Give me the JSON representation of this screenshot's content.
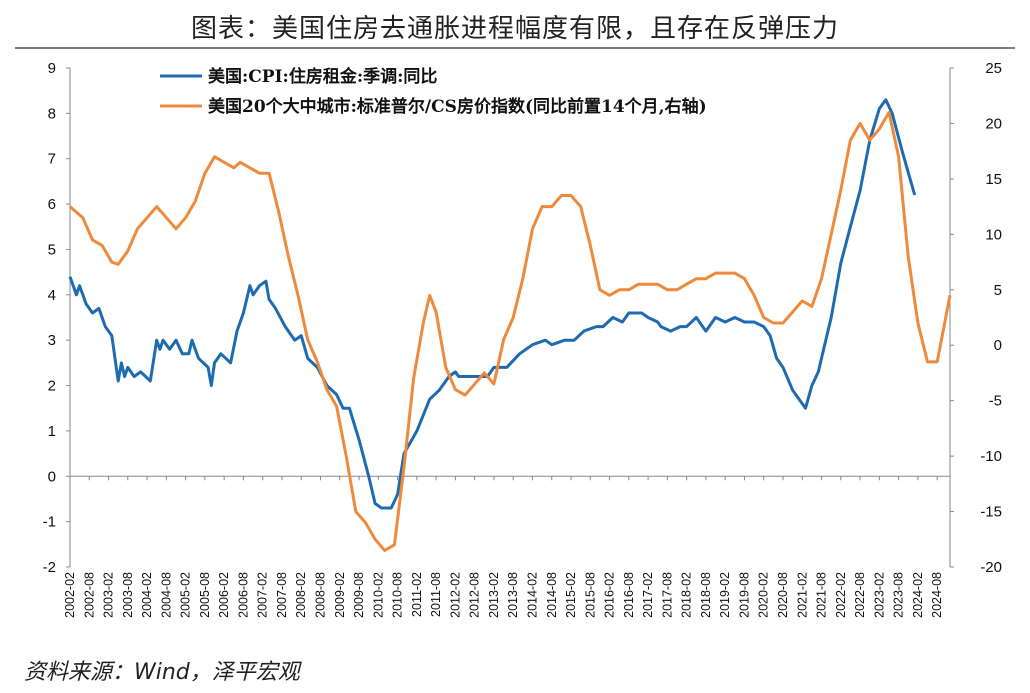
{
  "title": "图表：美国住房去通胀进程幅度有限，且存在反弹压力",
  "source": "资料来源：Wind，泽平宏观",
  "colors": {
    "cpi": "#1f6bb0",
    "cs": "#ed8a3c",
    "axis": "#888888"
  },
  "chart_data": {
    "type": "line",
    "legend_position": "top-left",
    "grid": false,
    "x_start": "2002-02",
    "x_end": "2024-12",
    "x_tick_labels": [
      "2002-02",
      "2002-08",
      "2003-02",
      "2003-08",
      "2004-02",
      "2004-08",
      "2005-02",
      "2005-08",
      "2006-02",
      "2006-08",
      "2007-02",
      "2007-08",
      "2008-02",
      "2008-08",
      "2009-02",
      "2009-08",
      "2010-02",
      "2010-08",
      "2011-02",
      "2011-08",
      "2012-02",
      "2012-08",
      "2013-02",
      "2013-08",
      "2014-02",
      "2014-08",
      "2015-02",
      "2015-08",
      "2016-02",
      "2016-08",
      "2017-02",
      "2017-08",
      "2018-02",
      "2018-08",
      "2019-02",
      "2019-08",
      "2020-02",
      "2020-08",
      "2021-02",
      "2021-08",
      "2022-02",
      "2022-08",
      "2023-02",
      "2023-08",
      "2024-02",
      "2024-08"
    ],
    "y_left": {
      "min": -2,
      "max": 9,
      "ticks": [
        -2,
        -1,
        0,
        1,
        2,
        3,
        4,
        5,
        6,
        7,
        8,
        9
      ]
    },
    "y_right": {
      "min": -20,
      "max": 25,
      "ticks": [
        -20,
        -15,
        -10,
        -5,
        0,
        5,
        10,
        15,
        20,
        25
      ]
    },
    "series": [
      {
        "name": "美国:CPI:住房租金:季调:同比",
        "axis": "left",
        "color": "#1f6bb0",
        "points": [
          [
            "2002-02",
            4.4
          ],
          [
            "2002-04",
            4.0
          ],
          [
            "2002-05",
            4.2
          ],
          [
            "2002-07",
            3.8
          ],
          [
            "2002-09",
            3.6
          ],
          [
            "2002-11",
            3.7
          ],
          [
            "2003-01",
            3.3
          ],
          [
            "2003-03",
            3.1
          ],
          [
            "2003-04",
            2.6
          ],
          [
            "2003-05",
            2.1
          ],
          [
            "2003-06",
            2.5
          ],
          [
            "2003-07",
            2.2
          ],
          [
            "2003-08",
            2.4
          ],
          [
            "2003-10",
            2.2
          ],
          [
            "2003-12",
            2.3
          ],
          [
            "2004-03",
            2.1
          ],
          [
            "2004-05",
            3.0
          ],
          [
            "2004-06",
            2.8
          ],
          [
            "2004-07",
            3.0
          ],
          [
            "2004-09",
            2.8
          ],
          [
            "2004-11",
            3.0
          ],
          [
            "2005-01",
            2.7
          ],
          [
            "2005-03",
            2.7
          ],
          [
            "2005-04",
            3.0
          ],
          [
            "2005-06",
            2.6
          ],
          [
            "2005-09",
            2.4
          ],
          [
            "2005-10",
            2.0
          ],
          [
            "2005-11",
            2.5
          ],
          [
            "2006-01",
            2.7
          ],
          [
            "2006-04",
            2.5
          ],
          [
            "2006-06",
            3.2
          ],
          [
            "2006-08",
            3.6
          ],
          [
            "2006-10",
            4.2
          ],
          [
            "2006-11",
            4.0
          ],
          [
            "2007-01",
            4.2
          ],
          [
            "2007-03",
            4.3
          ],
          [
            "2007-04",
            3.9
          ],
          [
            "2007-06",
            3.7
          ],
          [
            "2007-09",
            3.3
          ],
          [
            "2007-12",
            3.0
          ],
          [
            "2008-02",
            3.1
          ],
          [
            "2008-04",
            2.6
          ],
          [
            "2008-07",
            2.4
          ],
          [
            "2008-10",
            2.0
          ],
          [
            "2009-01",
            1.8
          ],
          [
            "2009-03",
            1.5
          ],
          [
            "2009-05",
            1.5
          ],
          [
            "2009-08",
            0.8
          ],
          [
            "2009-11",
            0.0
          ],
          [
            "2010-01",
            -0.6
          ],
          [
            "2010-03",
            -0.7
          ],
          [
            "2010-06",
            -0.7
          ],
          [
            "2010-08",
            -0.4
          ],
          [
            "2010-10",
            0.5
          ],
          [
            "2011-02",
            1.0
          ],
          [
            "2011-06",
            1.7
          ],
          [
            "2011-09",
            1.9
          ],
          [
            "2011-12",
            2.2
          ],
          [
            "2012-02",
            2.3
          ],
          [
            "2012-03",
            2.2
          ],
          [
            "2012-08",
            2.2
          ],
          [
            "2012-12",
            2.2
          ],
          [
            "2013-02",
            2.4
          ],
          [
            "2013-06",
            2.4
          ],
          [
            "2013-10",
            2.7
          ],
          [
            "2014-02",
            2.9
          ],
          [
            "2014-06",
            3.0
          ],
          [
            "2014-08",
            2.9
          ],
          [
            "2014-12",
            3.0
          ],
          [
            "2015-03",
            3.0
          ],
          [
            "2015-06",
            3.2
          ],
          [
            "2015-10",
            3.3
          ],
          [
            "2015-12",
            3.3
          ],
          [
            "2016-03",
            3.5
          ],
          [
            "2016-06",
            3.4
          ],
          [
            "2016-08",
            3.6
          ],
          [
            "2016-10",
            3.6
          ],
          [
            "2016-12",
            3.6
          ],
          [
            "2017-02",
            3.5
          ],
          [
            "2017-05",
            3.4
          ],
          [
            "2017-06",
            3.3
          ],
          [
            "2017-09",
            3.2
          ],
          [
            "2017-12",
            3.3
          ],
          [
            "2018-02",
            3.3
          ],
          [
            "2018-05",
            3.5
          ],
          [
            "2018-08",
            3.2
          ],
          [
            "2018-11",
            3.5
          ],
          [
            "2019-02",
            3.4
          ],
          [
            "2019-05",
            3.5
          ],
          [
            "2019-08",
            3.4
          ],
          [
            "2019-11",
            3.4
          ],
          [
            "2020-02",
            3.3
          ],
          [
            "2020-04",
            3.1
          ],
          [
            "2020-06",
            2.6
          ],
          [
            "2020-08",
            2.4
          ],
          [
            "2020-11",
            1.9
          ],
          [
            "2021-01",
            1.7
          ],
          [
            "2021-03",
            1.5
          ],
          [
            "2021-05",
            2.0
          ],
          [
            "2021-07",
            2.3
          ],
          [
            "2021-09",
            2.9
          ],
          [
            "2021-11",
            3.5
          ],
          [
            "2022-02",
            4.7
          ],
          [
            "2022-05",
            5.5
          ],
          [
            "2022-08",
            6.3
          ],
          [
            "2022-11",
            7.4
          ],
          [
            "2023-02",
            8.1
          ],
          [
            "2023-04",
            8.3
          ],
          [
            "2023-06",
            8.0
          ],
          [
            "2023-09",
            7.2
          ],
          [
            "2023-11",
            6.7
          ],
          [
            "2024-01",
            6.2
          ]
        ]
      },
      {
        "name": "美国20个大中城市:标准普尔/CS房价指数(同比前置14个月,右轴)",
        "axis": "right",
        "color": "#ed8a3c",
        "points": [
          [
            "2002-02",
            12.5
          ],
          [
            "2002-06",
            11.5
          ],
          [
            "2002-09",
            9.5
          ],
          [
            "2002-12",
            9.0
          ],
          [
            "2003-03",
            7.5
          ],
          [
            "2003-05",
            7.3
          ],
          [
            "2003-08",
            8.5
          ],
          [
            "2003-11",
            10.5
          ],
          [
            "2004-02",
            11.5
          ],
          [
            "2004-05",
            12.5
          ],
          [
            "2004-08",
            11.5
          ],
          [
            "2004-11",
            10.5
          ],
          [
            "2005-02",
            11.5
          ],
          [
            "2005-05",
            13.0
          ],
          [
            "2005-08",
            15.5
          ],
          [
            "2005-11",
            17.0
          ],
          [
            "2006-02",
            16.5
          ],
          [
            "2006-05",
            16.0
          ],
          [
            "2006-07",
            16.5
          ],
          [
            "2006-10",
            16.0
          ],
          [
            "2007-01",
            15.5
          ],
          [
            "2007-04",
            15.5
          ],
          [
            "2007-07",
            12.0
          ],
          [
            "2007-10",
            8.0
          ],
          [
            "2008-01",
            4.5
          ],
          [
            "2008-04",
            0.5
          ],
          [
            "2008-07",
            -1.5
          ],
          [
            "2008-10",
            -4.0
          ],
          [
            "2009-01",
            -5.5
          ],
          [
            "2009-04",
            -10.0
          ],
          [
            "2009-07",
            -15.0
          ],
          [
            "2009-10",
            -16.0
          ],
          [
            "2010-01",
            -17.5
          ],
          [
            "2010-04",
            -18.5
          ],
          [
            "2010-07",
            -18.0
          ],
          [
            "2010-10",
            -11.0
          ],
          [
            "2011-01",
            -3.0
          ],
          [
            "2011-04",
            2.0
          ],
          [
            "2011-06",
            4.5
          ],
          [
            "2011-08",
            3.0
          ],
          [
            "2011-11",
            -2.0
          ],
          [
            "2012-02",
            -4.0
          ],
          [
            "2012-05",
            -4.5
          ],
          [
            "2012-08",
            -3.5
          ],
          [
            "2012-11",
            -2.5
          ],
          [
            "2013-02",
            -3.5
          ],
          [
            "2013-05",
            0.5
          ],
          [
            "2013-08",
            2.5
          ],
          [
            "2013-11",
            6.0
          ],
          [
            "2014-02",
            10.5
          ],
          [
            "2014-05",
            12.5
          ],
          [
            "2014-08",
            12.5
          ],
          [
            "2014-11",
            13.5
          ],
          [
            "2015-02",
            13.5
          ],
          [
            "2015-05",
            12.5
          ],
          [
            "2015-08",
            9.0
          ],
          [
            "2015-11",
            5.0
          ],
          [
            "2016-02",
            4.5
          ],
          [
            "2016-05",
            5.0
          ],
          [
            "2016-08",
            5.0
          ],
          [
            "2016-11",
            5.5
          ],
          [
            "2017-02",
            5.5
          ],
          [
            "2017-05",
            5.5
          ],
          [
            "2017-08",
            5.0
          ],
          [
            "2017-11",
            5.0
          ],
          [
            "2018-02",
            5.5
          ],
          [
            "2018-05",
            6.0
          ],
          [
            "2018-08",
            6.0
          ],
          [
            "2018-11",
            6.5
          ],
          [
            "2019-02",
            6.5
          ],
          [
            "2019-05",
            6.5
          ],
          [
            "2019-08",
            6.0
          ],
          [
            "2019-11",
            4.5
          ],
          [
            "2020-02",
            2.5
          ],
          [
            "2020-05",
            2.0
          ],
          [
            "2020-08",
            2.0
          ],
          [
            "2020-11",
            3.0
          ],
          [
            "2021-02",
            4.0
          ],
          [
            "2021-05",
            3.5
          ],
          [
            "2021-08",
            6.0
          ],
          [
            "2021-11",
            10.0
          ],
          [
            "2022-02",
            14.0
          ],
          [
            "2022-05",
            18.5
          ],
          [
            "2022-08",
            20.0
          ],
          [
            "2022-11",
            18.5
          ],
          [
            "2023-02",
            19.5
          ],
          [
            "2023-05",
            21.0
          ],
          [
            "2023-08",
            17.0
          ],
          [
            "2023-11",
            8.0
          ],
          [
            "2024-02",
            2.0
          ],
          [
            "2024-05",
            -1.5
          ],
          [
            "2024-08",
            -1.5
          ],
          [
            "2024-11",
            3.0
          ],
          [
            "2024-12",
            4.5
          ]
        ]
      }
    ]
  }
}
